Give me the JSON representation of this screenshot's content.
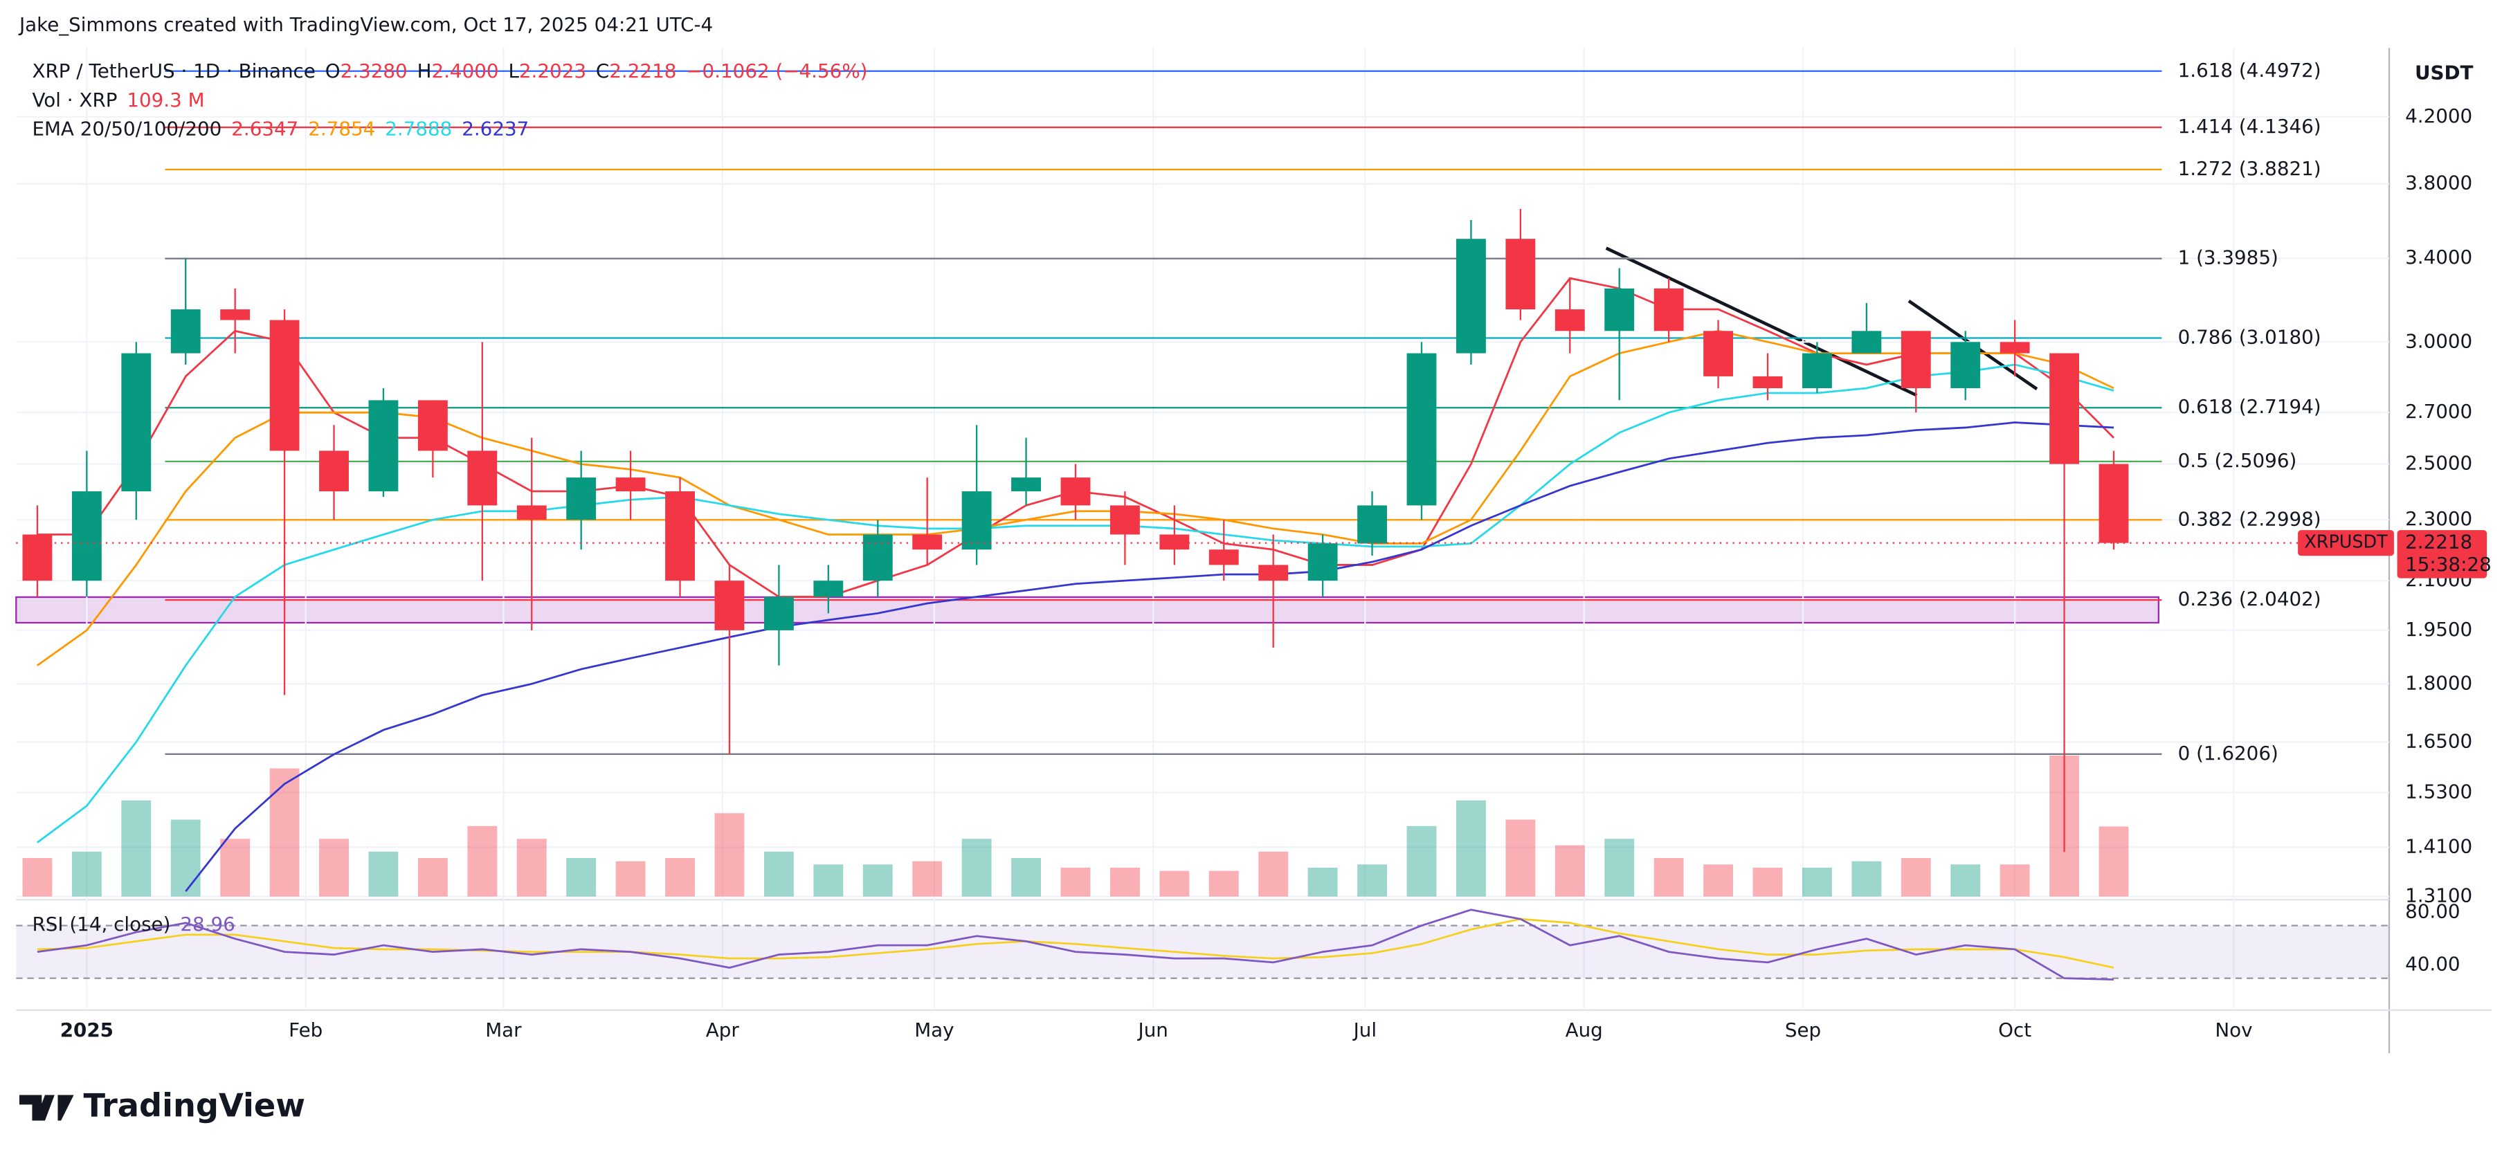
{
  "attribution": "Jake_Simmons created with TradingView.com, Oct 17, 2025 04:21 UTC-4",
  "brand": "TradingView",
  "chart_data": {
    "type": "candlestick",
    "title": "XRP / TetherUS · 1D · Binance",
    "ohlc_legend": [
      {
        "k": "O",
        "v": "2.3280"
      },
      {
        "k": "H",
        "v": "2.4000"
      },
      {
        "k": "L",
        "v": "2.2023"
      },
      {
        "k": "C",
        "v": "2.2218"
      }
    ],
    "change": "−0.1062 (−4.56%)",
    "volume_legend": {
      "label": "Vol · XRP",
      "value": "109.3 M"
    },
    "currency": "USDT",
    "log_scale": true,
    "grid": true,
    "ylim": [
      1.31,
      4.655
    ],
    "yticks": [
      {
        "value": 1.31,
        "label": "1.3100"
      },
      {
        "value": 1.41,
        "label": "1.4100"
      },
      {
        "value": 1.53,
        "label": "1.5300"
      },
      {
        "value": 1.65,
        "label": "1.6500"
      },
      {
        "value": 1.8,
        "label": "1.8000"
      },
      {
        "value": 1.95,
        "label": "1.9500"
      },
      {
        "value": 2.1,
        "label": "2.1000"
      },
      {
        "value": 2.3,
        "label": "2.3000"
      },
      {
        "value": 2.5,
        "label": "2.5000"
      },
      {
        "value": 2.7,
        "label": "2.7000"
      },
      {
        "value": 3.0,
        "label": "3.0000"
      },
      {
        "value": 3.4,
        "label": "3.4000"
      },
      {
        "value": 3.8,
        "label": "3.8000"
      },
      {
        "value": 4.2,
        "label": "4.2000"
      }
    ],
    "xlim": [
      -10,
      326
    ],
    "xticks": [
      {
        "value": 0,
        "label": "2025"
      },
      {
        "value": 31,
        "label": "Feb"
      },
      {
        "value": 59,
        "label": "Mar"
      },
      {
        "value": 90,
        "label": "Apr"
      },
      {
        "value": 120,
        "label": "May"
      },
      {
        "value": 151,
        "label": "Jun"
      },
      {
        "value": 181,
        "label": "Jul"
      },
      {
        "value": 212,
        "label": "Aug"
      },
      {
        "value": 243,
        "label": "Sep"
      },
      {
        "value": 273,
        "label": "Oct"
      },
      {
        "value": 304,
        "label": "Nov"
      }
    ],
    "up_color": "#089981",
    "down_color": "#f23645",
    "candles": {
      "x": [
        -7,
        0,
        7,
        14,
        21,
        28,
        35,
        42,
        49,
        56,
        63,
        70,
        77,
        84,
        91,
        98,
        105,
        112,
        119,
        126,
        133,
        140,
        147,
        154,
        161,
        168,
        175,
        182,
        189,
        196,
        203,
        210,
        217,
        224,
        231,
        238,
        245,
        252,
        259,
        266,
        273,
        280,
        287
      ],
      "open": [
        2.25,
        2.1,
        2.4,
        2.95,
        3.15,
        3.1,
        2.55,
        2.4,
        2.75,
        2.55,
        2.35,
        2.3,
        2.45,
        2.4,
        2.1,
        1.95,
        2.05,
        2.1,
        2.25,
        2.2,
        2.4,
        2.45,
        2.35,
        2.25,
        2.2,
        2.15,
        2.1,
        2.22,
        2.35,
        2.95,
        3.5,
        3.15,
        3.05,
        3.25,
        3.05,
        2.85,
        2.8,
        2.95,
        3.05,
        2.8,
        3.0,
        2.95,
        2.5
      ],
      "high": [
        2.35,
        2.55,
        3.0,
        3.4,
        3.25,
        3.15,
        2.65,
        2.8,
        2.75,
        3.0,
        2.6,
        2.55,
        2.55,
        2.45,
        2.15,
        2.15,
        2.15,
        2.3,
        2.45,
        2.65,
        2.6,
        2.5,
        2.4,
        2.35,
        2.3,
        2.25,
        2.25,
        2.4,
        3.0,
        3.6,
        3.66,
        3.3,
        3.35,
        3.3,
        3.1,
        2.95,
        3.0,
        3.18,
        3.05,
        3.05,
        3.1,
        2.95,
        2.55
      ],
      "low": [
        2.05,
        2.05,
        2.3,
        2.9,
        2.95,
        1.77,
        2.3,
        2.38,
        2.45,
        2.1,
        1.95,
        2.2,
        2.3,
        2.05,
        1.62,
        1.85,
        2.0,
        2.05,
        2.15,
        2.15,
        2.35,
        2.3,
        2.15,
        2.15,
        2.1,
        1.9,
        2.05,
        2.18,
        2.3,
        2.9,
        3.1,
        2.95,
        2.75,
        3.0,
        2.8,
        2.75,
        2.78,
        2.95,
        2.7,
        2.75,
        2.85,
        1.4,
        2.2
      ],
      "close": [
        2.1,
        2.4,
        2.95,
        3.15,
        3.1,
        2.55,
        2.4,
        2.75,
        2.55,
        2.35,
        2.3,
        2.45,
        2.4,
        2.1,
        1.95,
        2.05,
        2.1,
        2.25,
        2.2,
        2.4,
        2.45,
        2.35,
        2.25,
        2.2,
        2.15,
        2.1,
        2.22,
        2.35,
        2.95,
        3.5,
        3.15,
        3.05,
        3.25,
        3.05,
        2.85,
        2.8,
        2.95,
        3.05,
        2.8,
        3.0,
        2.95,
        2.5,
        2.2218
      ],
      "volume": [
        60,
        70,
        150,
        120,
        90,
        200,
        90,
        70,
        60,
        110,
        90,
        60,
        55,
        60,
        130,
        70,
        50,
        50,
        55,
        90,
        60,
        45,
        45,
        40,
        40,
        70,
        45,
        50,
        110,
        150,
        120,
        80,
        90,
        60,
        50,
        45,
        45,
        55,
        60,
        50,
        50,
        220,
        109.3
      ]
    },
    "vlim": [
      0,
      450
    ],
    "ema": {
      "label": "EMA 20/50/100/200",
      "lines": [
        {
          "color": "#f23645",
          "last": "2.6347",
          "values": [
            2.25,
            2.25,
            2.5,
            2.85,
            3.05,
            3.0,
            2.7,
            2.6,
            2.6,
            2.5,
            2.4,
            2.4,
            2.42,
            2.38,
            2.15,
            2.05,
            2.05,
            2.1,
            2.15,
            2.25,
            2.35,
            2.4,
            2.38,
            2.3,
            2.22,
            2.2,
            2.15,
            2.15,
            2.2,
            2.5,
            3.0,
            3.3,
            3.25,
            3.15,
            3.15,
            3.05,
            2.95,
            2.9,
            2.95,
            2.95,
            2.95,
            2.8,
            2.6
          ]
        },
        {
          "color": "#ff9800",
          "last": "2.7854",
          "values": [
            1.85,
            1.95,
            2.15,
            2.4,
            2.6,
            2.7,
            2.7,
            2.7,
            2.68,
            2.6,
            2.55,
            2.5,
            2.48,
            2.45,
            2.35,
            2.3,
            2.25,
            2.25,
            2.25,
            2.27,
            2.3,
            2.33,
            2.33,
            2.32,
            2.3,
            2.27,
            2.25,
            2.22,
            2.22,
            2.3,
            2.55,
            2.85,
            2.95,
            3.0,
            3.05,
            3.0,
            2.95,
            2.95,
            2.95,
            2.95,
            2.95,
            2.9,
            2.8
          ]
        },
        {
          "color": "#26d9e8",
          "last": "2.7888",
          "values": [
            1.42,
            1.5,
            1.65,
            1.85,
            2.05,
            2.15,
            2.2,
            2.25,
            2.3,
            2.33,
            2.33,
            2.35,
            2.37,
            2.38,
            2.35,
            2.32,
            2.3,
            2.28,
            2.27,
            2.27,
            2.28,
            2.28,
            2.28,
            2.27,
            2.25,
            2.23,
            2.22,
            2.21,
            2.21,
            2.22,
            2.35,
            2.5,
            2.62,
            2.7,
            2.75,
            2.78,
            2.78,
            2.8,
            2.85,
            2.87,
            2.9,
            2.85,
            2.79
          ]
        },
        {
          "color": "#3535d0",
          "last": "2.6237",
          "values": [
            null,
            null,
            null,
            1.32,
            1.45,
            1.55,
            1.62,
            1.68,
            1.72,
            1.77,
            1.8,
            1.84,
            1.87,
            1.9,
            1.93,
            1.96,
            1.98,
            2.0,
            2.03,
            2.05,
            2.07,
            2.09,
            2.1,
            2.11,
            2.12,
            2.12,
            2.13,
            2.16,
            2.2,
            2.28,
            2.35,
            2.42,
            2.47,
            2.52,
            2.55,
            2.58,
            2.6,
            2.61,
            2.63,
            2.64,
            2.66,
            2.65,
            2.64
          ]
        }
      ]
    },
    "fib_levels": [
      {
        "price": 4.4972,
        "label": "1.618 (4.4972)",
        "color": "#2962ff"
      },
      {
        "price": 4.1346,
        "label": "1.414 (4.1346)",
        "color": "#f23645"
      },
      {
        "price": 3.8821,
        "label": "1.272 (3.8821)",
        "color": "#ff9800"
      },
      {
        "price": 3.3985,
        "label": "1 (3.3985)",
        "color": "#787b86"
      },
      {
        "price": 3.018,
        "label": "0.786 (3.0180)",
        "color": "#00acc1"
      },
      {
        "price": 2.7194,
        "label": "0.618 (2.7194)",
        "color": "#089981"
      },
      {
        "price": 2.5096,
        "label": "0.5 (2.5096)",
        "color": "#4caf50"
      },
      {
        "price": 2.2998,
        "label": "0.382 (2.2998)",
        "color": "#ff9800"
      },
      {
        "price": 2.0402,
        "label": "0.236 (2.0402)",
        "color": "#f23645"
      },
      {
        "price": 1.6206,
        "label": "0 (1.6206)",
        "color": "#787b86"
      }
    ],
    "last_price": {
      "symbol": "XRPUSDT",
      "price": "2.2218",
      "countdown": "15:38:28",
      "color": "#f23645"
    },
    "rsi": {
      "label": "RSI (14, close)",
      "value_label": "28.96",
      "color": "#7e57c2",
      "ma_color": "#f5d020",
      "ylim": [
        7,
        86
      ],
      "yticks": [
        {
          "value": 80,
          "label": "80.00"
        },
        {
          "value": 40,
          "label": "40.00"
        }
      ],
      "band": [
        30,
        70
      ],
      "values": [
        50,
        55,
        65,
        72,
        60,
        50,
        48,
        55,
        50,
        52,
        48,
        52,
        50,
        45,
        38,
        48,
        50,
        55,
        55,
        62,
        58,
        50,
        48,
        45,
        45,
        42,
        50,
        55,
        70,
        82,
        75,
        55,
        62,
        50,
        45,
        42,
        52,
        60,
        48,
        55,
        52,
        30,
        28.96
      ],
      "ma_values": [
        52,
        53,
        58,
        63,
        63,
        58,
        53,
        52,
        52,
        51,
        50,
        50,
        50,
        48,
        45,
        45,
        46,
        49,
        52,
        56,
        58,
        56,
        53,
        50,
        47,
        45,
        46,
        49,
        56,
        67,
        75,
        72,
        64,
        58,
        52,
        48,
        48,
        51,
        52,
        52,
        52,
        46,
        38
      ]
    }
  }
}
